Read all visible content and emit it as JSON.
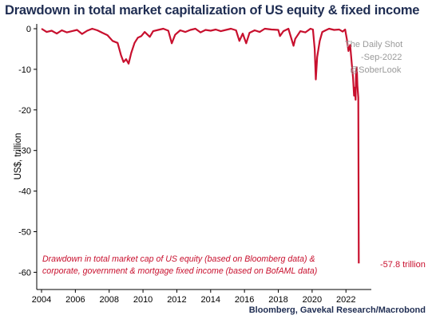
{
  "chart_data": {
    "type": "line",
    "title": "Drawdown in total market capitalization of US equity & fixed income",
    "source": "Bloomberg, Gavekal Research/Macrobond",
    "ylabel": "US$, trillion",
    "ylim": [
      -62,
      0
    ],
    "xlim": [
      2004,
      2022.9
    ],
    "y_ticks": [
      0,
      -10,
      -20,
      -30,
      -40,
      -50,
      -60
    ],
    "x_ticks": [
      2004,
      2006,
      2008,
      2010,
      2012,
      2014,
      2016,
      2018,
      2020,
      2022
    ],
    "grid": false,
    "annotation": [
      "Drawdown in total market cap of US equity (based on Bloomberg data) &",
      "corporate, government & mortgage fixed income (based on BofAML data)"
    ],
    "end_label": "-57.8 trillion",
    "watermark": [
      "The Daily Shot",
      "-Sep-2022",
      "@SoberLook"
    ],
    "series": [
      {
        "color": "#c8102e",
        "points": [
          [
            2004.0,
            0
          ],
          [
            2004.3,
            -0.8
          ],
          [
            2004.6,
            -0.5
          ],
          [
            2004.9,
            -1.2
          ],
          [
            2005.2,
            -0.4
          ],
          [
            2005.5,
            -0.9
          ],
          [
            2005.8,
            -0.6
          ],
          [
            2006.1,
            -0.3
          ],
          [
            2006.4,
            -1.3
          ],
          [
            2006.7,
            -0.5
          ],
          [
            2007.0,
            0
          ],
          [
            2007.3,
            -0.4
          ],
          [
            2007.6,
            -1.0
          ],
          [
            2007.9,
            -1.6
          ],
          [
            2008.2,
            -3.0
          ],
          [
            2008.5,
            -3.5
          ],
          [
            2008.7,
            -6.5
          ],
          [
            2008.85,
            -8.2
          ],
          [
            2009.0,
            -7.5
          ],
          [
            2009.15,
            -8.6
          ],
          [
            2009.3,
            -6.0
          ],
          [
            2009.5,
            -3.5
          ],
          [
            2009.7,
            -2.2
          ],
          [
            2009.9,
            -1.8
          ],
          [
            2010.1,
            -0.8
          ],
          [
            2010.4,
            -2.0
          ],
          [
            2010.6,
            -0.6
          ],
          [
            2010.9,
            -0.3
          ],
          [
            2011.2,
            0
          ],
          [
            2011.5,
            -0.5
          ],
          [
            2011.7,
            -3.6
          ],
          [
            2011.9,
            -1.5
          ],
          [
            2012.2,
            -0.4
          ],
          [
            2012.5,
            -0.8
          ],
          [
            2012.8,
            -0.3
          ],
          [
            2013.1,
            0
          ],
          [
            2013.4,
            -0.9
          ],
          [
            2013.7,
            -0.3
          ],
          [
            2014.0,
            -0.5
          ],
          [
            2014.3,
            -0.2
          ],
          [
            2014.6,
            -0.6
          ],
          [
            2014.9,
            -0.3
          ],
          [
            2015.2,
            0
          ],
          [
            2015.5,
            -0.4
          ],
          [
            2015.7,
            -3.0
          ],
          [
            2015.9,
            -1.2
          ],
          [
            2016.1,
            -3.6
          ],
          [
            2016.3,
            -1.0
          ],
          [
            2016.6,
            -0.4
          ],
          [
            2016.9,
            -0.8
          ],
          [
            2017.2,
            0
          ],
          [
            2017.6,
            -0.2
          ],
          [
            2018.0,
            -0.3
          ],
          [
            2018.1,
            -1.8
          ],
          [
            2018.3,
            -0.6
          ],
          [
            2018.6,
            0
          ],
          [
            2018.9,
            -4.2
          ],
          [
            2019.0,
            -2.5
          ],
          [
            2019.3,
            -0.6
          ],
          [
            2019.6,
            -0.9
          ],
          [
            2019.9,
            0
          ],
          [
            2020.05,
            -0.2
          ],
          [
            2020.15,
            -5.0
          ],
          [
            2020.22,
            -12.5
          ],
          [
            2020.3,
            -7.0
          ],
          [
            2020.45,
            -3.0
          ],
          [
            2020.6,
            -0.8
          ],
          [
            2020.8,
            -0.4
          ],
          [
            2021.0,
            0
          ],
          [
            2021.3,
            -0.3
          ],
          [
            2021.6,
            -0.2
          ],
          [
            2021.8,
            -0.7
          ],
          [
            2021.95,
            -0.2
          ],
          [
            2022.05,
            -2.5
          ],
          [
            2022.15,
            -5.5
          ],
          [
            2022.25,
            -4.0
          ],
          [
            2022.35,
            -9.0
          ],
          [
            2022.42,
            -12.0
          ],
          [
            2022.48,
            -16.5
          ],
          [
            2022.53,
            -14.5
          ],
          [
            2022.57,
            -17.5
          ],
          [
            2022.6,
            -10.0
          ],
          [
            2022.64,
            -9.5
          ],
          [
            2022.68,
            -14.0
          ],
          [
            2022.73,
            -17.0
          ],
          [
            2022.76,
            -57.8
          ]
        ]
      }
    ]
  }
}
